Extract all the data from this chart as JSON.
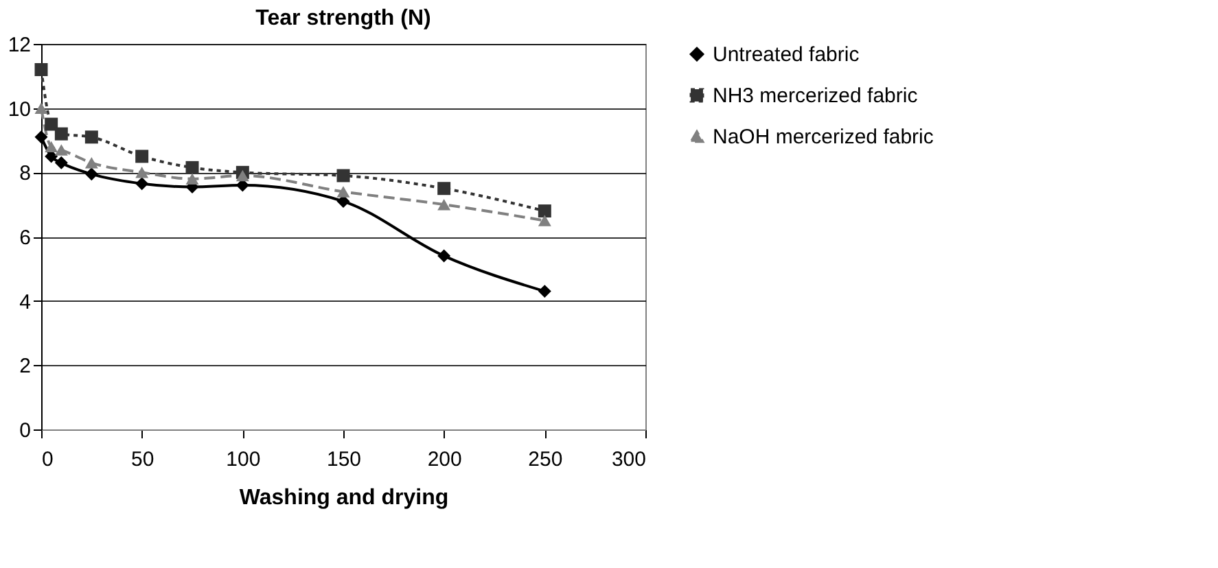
{
  "chart_data": {
    "type": "line",
    "title": "Tear strength (N)",
    "xlabel": "Washing and drying",
    "x": [
      0,
      5,
      10,
      25,
      50,
      75,
      100,
      150,
      200,
      250
    ],
    "series": [
      {
        "name": "Untreated fabric",
        "color": "#000000",
        "marker": "diamond",
        "line_style": "solid",
        "values": [
          9.1,
          8.5,
          8.3,
          7.95,
          7.65,
          7.55,
          7.6,
          7.1,
          5.4,
          4.3
        ]
      },
      {
        "name": "NH3 mercerized fabric",
        "color": "#333333",
        "marker": "square",
        "line_style": "dotted",
        "values": [
          11.2,
          9.5,
          9.2,
          9.1,
          8.5,
          8.15,
          8.0,
          7.9,
          7.5,
          6.8
        ]
      },
      {
        "name": "NaOH mercerized fabric",
        "color": "#808080",
        "marker": "triangle",
        "line_style": "dashed",
        "values": [
          10.0,
          8.8,
          8.7,
          8.3,
          8.0,
          7.8,
          7.9,
          7.4,
          7.0,
          6.5
        ]
      }
    ],
    "xlim": [
      0,
      300
    ],
    "xticks": [
      0,
      50,
      100,
      150,
      200,
      250,
      300
    ],
    "ylim": [
      0,
      12
    ],
    "yticks": [
      0,
      2,
      4,
      6,
      8,
      10,
      12
    ],
    "grid": "y",
    "legend": "right"
  }
}
